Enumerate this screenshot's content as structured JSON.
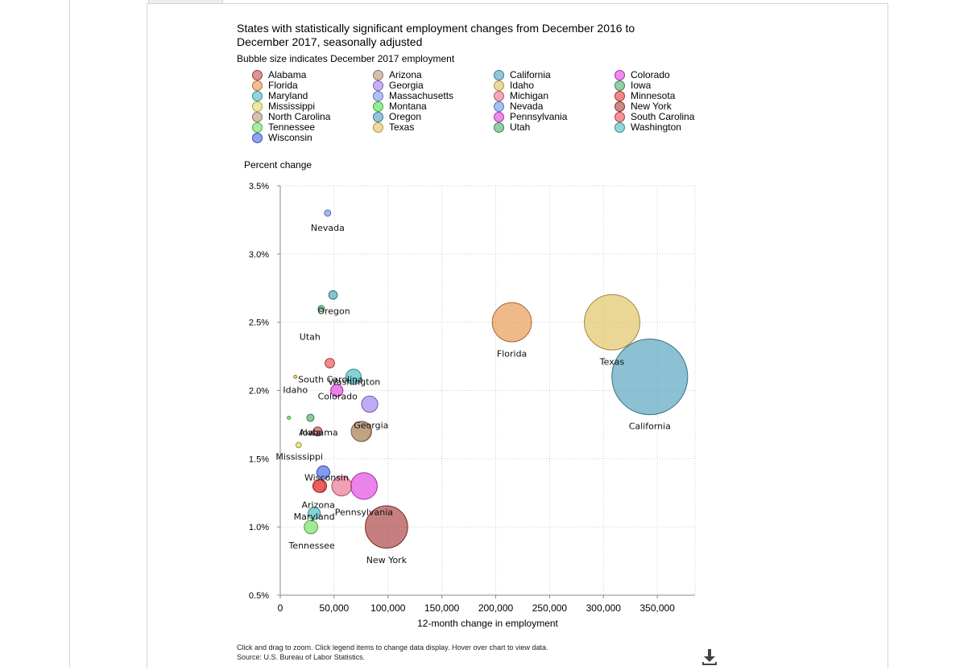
{
  "chart_data": {
    "type": "scatter",
    "title": "States with statistically significant employment changes from December 2016 to December 2017, seasonally adjusted",
    "subtitle": "Bubble size indicates December 2017 employment",
    "xlabel": "12-month change in employment",
    "ylabel": "Percent change",
    "xlim": [
      0,
      385000
    ],
    "ylim": [
      0.5,
      3.5
    ],
    "x_ticks": [
      {
        "value": 0,
        "label": "0"
      },
      {
        "value": 50000,
        "label": "50,000"
      },
      {
        "value": 100000,
        "label": "100,000"
      },
      {
        "value": 150000,
        "label": "150,000"
      },
      {
        "value": 200000,
        "label": "200,000"
      },
      {
        "value": 250000,
        "label": "250,000"
      },
      {
        "value": 300000,
        "label": "300,000"
      },
      {
        "value": 350000,
        "label": "350,000"
      }
    ],
    "y_ticks": [
      {
        "value": 0.5,
        "label": "0.5%"
      },
      {
        "value": 1.0,
        "label": "1.0%"
      },
      {
        "value": 1.5,
        "label": "1.5%"
      },
      {
        "value": 2.0,
        "label": "2.0%"
      },
      {
        "value": 2.5,
        "label": "2.5%"
      },
      {
        "value": 3.0,
        "label": "3.0%"
      },
      {
        "value": 3.5,
        "label": "3.5%"
      }
    ],
    "grid": true,
    "legend_position": "top",
    "series": [
      {
        "name": "Alabama",
        "x": 34700,
        "y": 1.7,
        "size": 2.0,
        "color": "#c0504d"
      },
      {
        "name": "Arizona",
        "x": 36000,
        "y": 1.3,
        "size": 2.8,
        "color": "#e8504a"
      },
      {
        "name": "California",
        "x": 343000,
        "y": 2.1,
        "size": 16.8,
        "color": "#4f9fbd"
      },
      {
        "name": "Colorado",
        "x": 52500,
        "y": 2.0,
        "size": 2.7,
        "color": "#e040e0"
      },
      {
        "name": "Florida",
        "x": 215000,
        "y": 2.5,
        "size": 8.7,
        "color": "#e8944a"
      },
      {
        "name": "Georgia",
        "x": 75400,
        "y": 1.7,
        "size": 4.5,
        "color": "#b39267"
      },
      {
        "name": "Idaho",
        "x": 14000,
        "y": 2.1,
        "size": 0.7,
        "color": "#d8b43c"
      },
      {
        "name": "Iowa",
        "x": 28000,
        "y": 1.8,
        "size": 1.6,
        "color": "#4cae6c"
      },
      {
        "name": "Maryland",
        "x": 31500,
        "y": 1.1,
        "size": 2.7,
        "color": "#44bcc0"
      },
      {
        "name": "Massachusetts",
        "x": 83000,
        "y": 1.9,
        "size": 3.6,
        "color": "#9d7ef0"
      },
      {
        "name": "Michigan",
        "x": 57000,
        "y": 1.3,
        "size": 4.4,
        "color": "#e8708c"
      },
      {
        "name": "Minnesota",
        "x": 37000,
        "y": 1.3,
        "size": 2.9,
        "color": "#e53838"
      },
      {
        "name": "Mississippi",
        "x": 17000,
        "y": 1.6,
        "size": 1.2,
        "color": "#e0d860"
      },
      {
        "name": "Montana",
        "x": 8000,
        "y": 1.8,
        "size": 0.5,
        "color": "#4ce050"
      },
      {
        "name": "Nevada",
        "x": 44000,
        "y": 3.3,
        "size": 1.4,
        "color": "#6f96f0"
      },
      {
        "name": "New York",
        "x": 98600,
        "y": 1.0,
        "size": 9.4,
        "color": "#a83a3a"
      },
      {
        "name": "North Carolina",
        "x": 75000,
        "y": 1.7,
        "size": 4.4,
        "color": "#b8967a"
      },
      {
        "name": "Oregon",
        "x": 49000,
        "y": 2.7,
        "size": 1.9,
        "color": "#4f9fbd"
      },
      {
        "name": "Pennsylvania",
        "x": 77700,
        "y": 1.3,
        "size": 5.9,
        "color": "#e040e0"
      },
      {
        "name": "South Carolina",
        "x": 46000,
        "y": 2.2,
        "size": 2.1,
        "color": "#e84e4e"
      },
      {
        "name": "Tennessee",
        "x": 28500,
        "y": 1.0,
        "size": 3.0,
        "color": "#6fe060"
      },
      {
        "name": "Texas",
        "x": 308000,
        "y": 2.5,
        "size": 12.3,
        "color": "#e0c15c"
      },
      {
        "name": "Utah",
        "x": 38000,
        "y": 2.6,
        "size": 1.4,
        "color": "#4cae6c"
      },
      {
        "name": "Washington",
        "x": 68000,
        "y": 2.1,
        "size": 3.4,
        "color": "#44bcc0"
      },
      {
        "name": "Wisconsin",
        "x": 40000,
        "y": 1.4,
        "size": 2.9,
        "color": "#4466e8"
      }
    ]
  },
  "legend": [
    {
      "label": "Alabama",
      "color": "#c0504d"
    },
    {
      "label": "Arizona",
      "color": "#b8967a"
    },
    {
      "label": "California",
      "color": "#4f9fbd"
    },
    {
      "label": "Colorado",
      "color": "#e040e0"
    },
    {
      "label": "Florida",
      "color": "#e8944a"
    },
    {
      "label": "Georgia",
      "color": "#9d7ef0"
    },
    {
      "label": "Idaho",
      "color": "#e0c15c"
    },
    {
      "label": "Iowa",
      "color": "#4cae6c"
    },
    {
      "label": "Maryland",
      "color": "#44bcc0"
    },
    {
      "label": "Massachusetts",
      "color": "#7f96f0"
    },
    {
      "label": "Michigan",
      "color": "#e8708c"
    },
    {
      "label": "Minnesota",
      "color": "#e53838"
    },
    {
      "label": "Mississippi",
      "color": "#e0d860"
    },
    {
      "label": "Montana",
      "color": "#4ce050"
    },
    {
      "label": "Nevada",
      "color": "#6f96f0"
    },
    {
      "label": "New York",
      "color": "#a83a3a"
    },
    {
      "label": "North Carolina",
      "color": "#b8967a"
    },
    {
      "label": "Oregon",
      "color": "#4f9fbd"
    },
    {
      "label": "Pennsylvania",
      "color": "#e040e0"
    },
    {
      "label": "South Carolina",
      "color": "#e84e4e"
    },
    {
      "label": "Tennessee",
      "color": "#6fe060"
    },
    {
      "label": "Texas",
      "color": "#e0c15c"
    },
    {
      "label": "Utah",
      "color": "#4cae6c"
    },
    {
      "label": "Washington",
      "color": "#44bcc0"
    },
    {
      "label": "Wisconsin",
      "color": "#4466e8"
    }
  ],
  "footnote": {
    "line1": "Click and drag to zoom. Click legend items to change data display. Hover over chart to view data.",
    "line2": "Source: U.S. Bureau of Labor Statistics."
  },
  "download": {
    "icon": "download-icon"
  }
}
